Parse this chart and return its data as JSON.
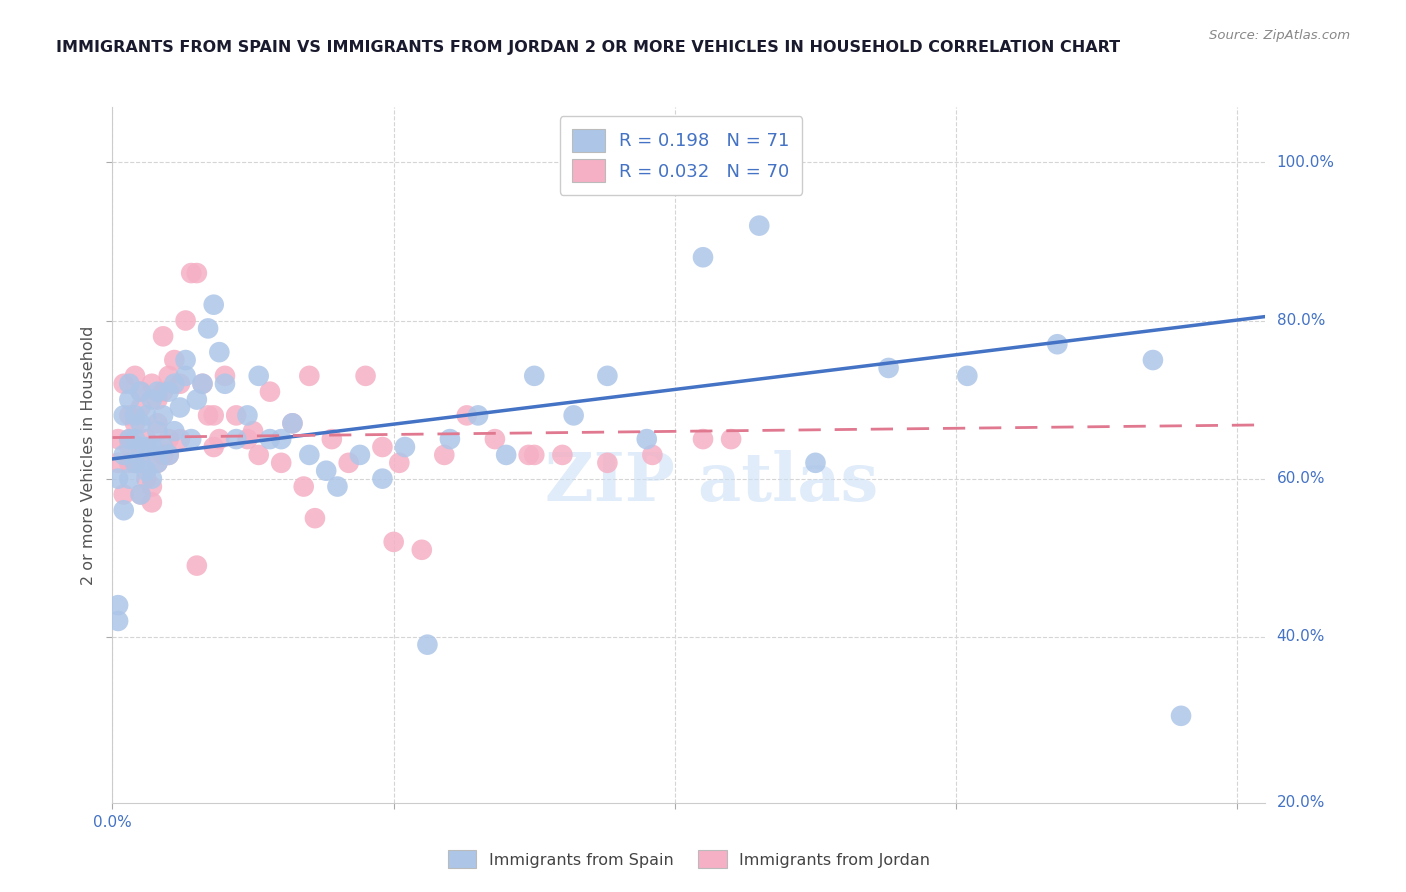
{
  "title": "IMMIGRANTS FROM SPAIN VS IMMIGRANTS FROM JORDAN 2 OR MORE VEHICLES IN HOUSEHOLD CORRELATION CHART",
  "source": "Source: ZipAtlas.com",
  "ylabel": "2 or more Vehicles in Household",
  "spain_R": 0.198,
  "spain_N": 71,
  "jordan_R": 0.032,
  "jordan_N": 70,
  "spain_color": "#adc6e8",
  "jordan_color": "#f5b0c5",
  "spain_line_color": "#4472c4",
  "jordan_line_color": "#e07890",
  "xlim": [
    0.0,
    0.205
  ],
  "ylim": [
    0.19,
    1.07
  ],
  "x_tick_positions": [
    0.0,
    0.05,
    0.1,
    0.15,
    0.2
  ],
  "y_tick_positions": [
    0.4,
    0.6,
    0.8,
    1.0
  ],
  "y_tick_labels": [
    "40.0%",
    "60.0%",
    "80.0%",
    "100.0%"
  ],
  "spain_line_x0": 0.0,
  "spain_line_y0": 0.625,
  "spain_line_x1": 0.205,
  "spain_line_y1": 0.805,
  "jordan_line_x0": 0.0,
  "jordan_line_y0": 0.652,
  "jordan_line_x1": 0.205,
  "jordan_line_y1": 0.668,
  "spain_x": [
    0.001,
    0.001,
    0.002,
    0.002,
    0.002,
    0.003,
    0.003,
    0.003,
    0.003,
    0.004,
    0.004,
    0.004,
    0.005,
    0.005,
    0.005,
    0.005,
    0.005,
    0.006,
    0.006,
    0.006,
    0.007,
    0.007,
    0.007,
    0.008,
    0.008,
    0.008,
    0.009,
    0.009,
    0.01,
    0.01,
    0.011,
    0.011,
    0.012,
    0.013,
    0.013,
    0.014,
    0.015,
    0.016,
    0.017,
    0.018,
    0.019,
    0.02,
    0.022,
    0.024,
    0.026,
    0.028,
    0.03,
    0.032,
    0.035,
    0.038,
    0.04,
    0.044,
    0.048,
    0.052,
    0.056,
    0.06,
    0.065,
    0.07,
    0.075,
    0.082,
    0.088,
    0.095,
    0.105,
    0.115,
    0.125,
    0.138,
    0.152,
    0.168,
    0.185,
    0.001,
    0.19
  ],
  "spain_y": [
    0.42,
    0.6,
    0.56,
    0.63,
    0.68,
    0.6,
    0.65,
    0.7,
    0.72,
    0.62,
    0.65,
    0.68,
    0.58,
    0.62,
    0.64,
    0.67,
    0.71,
    0.61,
    0.64,
    0.68,
    0.6,
    0.64,
    0.7,
    0.62,
    0.66,
    0.71,
    0.64,
    0.68,
    0.63,
    0.71,
    0.66,
    0.72,
    0.69,
    0.73,
    0.75,
    0.65,
    0.7,
    0.72,
    0.79,
    0.82,
    0.76,
    0.72,
    0.65,
    0.68,
    0.73,
    0.65,
    0.65,
    0.67,
    0.63,
    0.61,
    0.59,
    0.63,
    0.6,
    0.64,
    0.39,
    0.65,
    0.68,
    0.63,
    0.73,
    0.68,
    0.73,
    0.65,
    0.88,
    0.92,
    0.62,
    0.74,
    0.73,
    0.77,
    0.75,
    0.44,
    0.3
  ],
  "jordan_x": [
    0.001,
    0.001,
    0.002,
    0.002,
    0.003,
    0.003,
    0.004,
    0.004,
    0.005,
    0.005,
    0.005,
    0.006,
    0.006,
    0.007,
    0.007,
    0.008,
    0.008,
    0.009,
    0.009,
    0.01,
    0.01,
    0.011,
    0.012,
    0.013,
    0.014,
    0.015,
    0.016,
    0.017,
    0.018,
    0.019,
    0.02,
    0.022,
    0.024,
    0.026,
    0.028,
    0.03,
    0.032,
    0.034,
    0.036,
    0.039,
    0.042,
    0.045,
    0.048,
    0.051,
    0.055,
    0.059,
    0.063,
    0.068,
    0.074,
    0.08,
    0.088,
    0.096,
    0.105,
    0.003,
    0.003,
    0.004,
    0.005,
    0.006,
    0.007,
    0.008,
    0.009,
    0.01,
    0.012,
    0.015,
    0.018,
    0.025,
    0.035,
    0.05,
    0.075,
    0.11
  ],
  "jordan_y": [
    0.62,
    0.65,
    0.58,
    0.72,
    0.65,
    0.68,
    0.62,
    0.73,
    0.58,
    0.63,
    0.69,
    0.6,
    0.65,
    0.57,
    0.72,
    0.62,
    0.7,
    0.63,
    0.78,
    0.65,
    0.73,
    0.75,
    0.72,
    0.8,
    0.86,
    0.86,
    0.72,
    0.68,
    0.64,
    0.65,
    0.73,
    0.68,
    0.65,
    0.63,
    0.71,
    0.62,
    0.67,
    0.59,
    0.55,
    0.65,
    0.62,
    0.73,
    0.64,
    0.62,
    0.51,
    0.63,
    0.68,
    0.65,
    0.63,
    0.63,
    0.62,
    0.63,
    0.65,
    0.64,
    0.62,
    0.67,
    0.71,
    0.64,
    0.59,
    0.67,
    0.71,
    0.63,
    0.65,
    0.49,
    0.68,
    0.66,
    0.73,
    0.52,
    0.63,
    0.65
  ]
}
